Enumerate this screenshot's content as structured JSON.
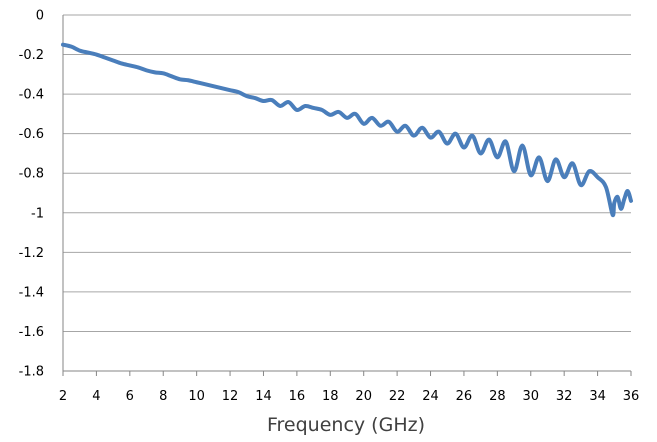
{
  "chart_data": {
    "type": "line",
    "title": "",
    "xlabel": "Frequency (GHz)",
    "ylabel": "",
    "xlim": [
      2,
      36
    ],
    "ylim": [
      -1.8,
      0
    ],
    "x_ticks": [
      2,
      4,
      6,
      8,
      10,
      12,
      14,
      16,
      18,
      20,
      22,
      24,
      26,
      28,
      30,
      32,
      34,
      36
    ],
    "y_ticks": [
      0,
      -0.2,
      -0.4,
      -0.6,
      -0.8,
      -1,
      -1.2,
      -1.4,
      -1.6,
      -1.8
    ],
    "grid": "horizontal",
    "legend": "none",
    "series": [
      {
        "color": "#4a7ebb",
        "x": [
          2.0,
          2.5,
          3.0,
          3.5,
          4.0,
          4.5,
          5.0,
          5.5,
          6.0,
          6.5,
          7.0,
          7.5,
          8.0,
          8.5,
          9.0,
          9.5,
          10.0,
          10.5,
          11.0,
          11.5,
          12.0,
          12.5,
          13.0,
          13.5,
          14.0,
          14.5,
          15.0,
          15.5,
          16.0,
          16.5,
          17.0,
          17.5,
          18.0,
          18.5,
          19.0,
          19.5,
          20.0,
          20.5,
          21.0,
          21.5,
          22.0,
          22.5,
          23.0,
          23.5,
          24.0,
          24.5,
          25.0,
          25.5,
          26.0,
          26.5,
          27.0,
          27.5,
          28.0,
          28.5,
          29.0,
          29.5,
          30.0,
          30.5,
          31.0,
          31.5,
          32.0,
          32.5,
          33.0,
          33.5,
          34.0,
          34.5,
          34.9,
          35.0,
          35.2,
          35.4,
          35.6,
          35.8,
          36.0
        ],
        "values": [
          -0.15,
          -0.16,
          -0.18,
          -0.19,
          -0.2,
          -0.215,
          -0.23,
          -0.245,
          -0.255,
          -0.265,
          -0.28,
          -0.29,
          -0.295,
          -0.31,
          -0.325,
          -0.33,
          -0.34,
          -0.35,
          -0.36,
          -0.37,
          -0.38,
          -0.39,
          -0.41,
          -0.42,
          -0.435,
          -0.43,
          -0.46,
          -0.44,
          -0.48,
          -0.46,
          -0.47,
          -0.48,
          -0.505,
          -0.49,
          -0.52,
          -0.5,
          -0.55,
          -0.52,
          -0.56,
          -0.54,
          -0.59,
          -0.56,
          -0.61,
          -0.57,
          -0.62,
          -0.59,
          -0.65,
          -0.6,
          -0.67,
          -0.61,
          -0.7,
          -0.63,
          -0.72,
          -0.64,
          -0.79,
          -0.66,
          -0.81,
          -0.72,
          -0.84,
          -0.73,
          -0.82,
          -0.75,
          -0.86,
          -0.79,
          -0.82,
          -0.87,
          -1.01,
          -0.95,
          -0.92,
          -0.98,
          -0.93,
          -0.89,
          -0.94
        ]
      }
    ]
  }
}
